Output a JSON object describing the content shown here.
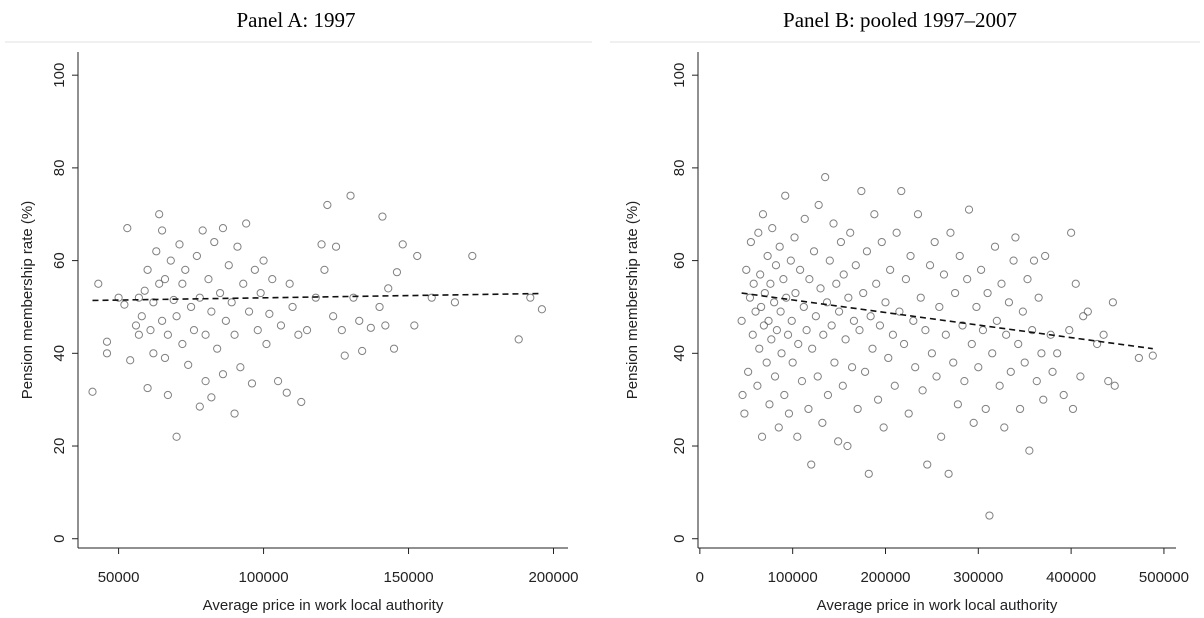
{
  "chart_data": [
    {
      "type": "scatter",
      "title": "Panel A: 1997",
      "xlabel": "Average price in work local authority",
      "ylabel": "Pension membership rate (%)",
      "xlim": [
        36000,
        205000
      ],
      "ylim": [
        -2,
        105
      ],
      "xticks": [
        50000,
        100000,
        150000,
        200000
      ],
      "yticks": [
        0,
        20,
        40,
        60,
        80,
        100
      ],
      "color": "#555555",
      "x": [
        41000,
        43000,
        46000,
        46000,
        50000,
        52000,
        53000,
        54000,
        56000,
        57000,
        57000,
        58000,
        59000,
        60000,
        60000,
        61000,
        62000,
        62000,
        63000,
        64000,
        64000,
        65000,
        65000,
        66000,
        66000,
        67000,
        67000,
        68000,
        69000,
        70000,
        70000,
        71000,
        72000,
        72000,
        73000,
        74000,
        75000,
        76000,
        77000,
        78000,
        78000,
        79000,
        80000,
        80000,
        81000,
        82000,
        82000,
        83000,
        84000,
        85000,
        86000,
        86000,
        87000,
        88000,
        89000,
        90000,
        90000,
        91000,
        92000,
        93000,
        94000,
        95000,
        96000,
        97000,
        98000,
        99000,
        100000,
        101000,
        102000,
        103000,
        105000,
        106000,
        108000,
        109000,
        110000,
        112000,
        113000,
        115000,
        118000,
        120000,
        121000,
        122000,
        124000,
        125000,
        127000,
        128000,
        130000,
        131000,
        133000,
        134000,
        137000,
        140000,
        141000,
        142000,
        143000,
        145000,
        146000,
        148000,
        152000,
        153000,
        158000,
        166000,
        172000,
        188000,
        192000,
        196000
      ],
      "y": [
        31.7,
        55,
        40,
        42.5,
        52,
        50.5,
        67,
        38.5,
        46,
        44,
        52,
        48,
        53.5,
        32.5,
        58,
        45,
        51,
        40,
        62,
        55,
        70,
        66.5,
        47,
        39,
        56,
        31,
        44,
        60,
        51.5,
        22,
        48,
        63.5,
        42,
        55,
        58,
        37.5,
        50,
        45,
        61,
        28.5,
        52,
        66.5,
        44,
        34,
        56,
        49,
        30.5,
        64,
        41,
        53,
        67,
        35.5,
        47,
        59,
        51,
        27,
        44,
        63,
        37,
        55,
        68,
        49,
        33.5,
        58,
        45,
        53,
        60,
        42,
        48.5,
        56,
        34,
        46,
        31.5,
        55,
        50,
        44,
        29.5,
        45,
        52,
        63.5,
        58,
        72,
        48,
        63,
        45,
        39.5,
        74,
        52,
        47,
        40.5,
        45.5,
        50,
        69.5,
        46,
        54,
        41,
        57.5,
        63.5,
        46,
        61,
        52,
        51,
        61,
        43,
        52,
        49.5
      ],
      "fit": {
        "x": [
          41000,
          196000
        ],
        "y": [
          51.4,
          52.9
        ]
      }
    },
    {
      "type": "scatter",
      "title": "Panel B: pooled 1997–2007",
      "xlabel": "Average price in work local authority",
      "ylabel": "Pension membership rate (%)",
      "xlim": [
        -2000,
        513000
      ],
      "ylim": [
        -2,
        105
      ],
      "xticks": [
        0,
        100000,
        200000,
        300000,
        400000,
        500000
      ],
      "yticks": [
        0,
        20,
        40,
        60,
        80,
        100
      ],
      "color": "#555555",
      "x": [
        45000,
        46000,
        48000,
        50000,
        52000,
        54000,
        55000,
        57000,
        58000,
        60000,
        62000,
        63000,
        64000,
        65000,
        66000,
        67000,
        68000,
        69000,
        70000,
        72000,
        73000,
        74000,
        75000,
        76000,
        77000,
        78000,
        80000,
        81000,
        82000,
        83000,
        85000,
        86000,
        87000,
        88000,
        90000,
        91000,
        92000,
        93000,
        95000,
        96000,
        98000,
        99000,
        100000,
        102000,
        103000,
        105000,
        106000,
        108000,
        110000,
        112000,
        113000,
        115000,
        117000,
        118000,
        120000,
        121000,
        123000,
        125000,
        127000,
        128000,
        130000,
        132000,
        133000,
        135000,
        137000,
        138000,
        140000,
        142000,
        144000,
        145000,
        147000,
        149000,
        150000,
        152000,
        154000,
        155000,
        157000,
        159000,
        160000,
        162000,
        164000,
        166000,
        168000,
        170000,
        172000,
        174000,
        176000,
        178000,
        180000,
        182000,
        184000,
        186000,
        188000,
        190000,
        192000,
        194000,
        196000,
        198000,
        200000,
        203000,
        205000,
        208000,
        210000,
        212000,
        215000,
        217000,
        220000,
        222000,
        225000,
        227000,
        230000,
        232000,
        235000,
        238000,
        240000,
        243000,
        245000,
        248000,
        250000,
        253000,
        255000,
        258000,
        260000,
        263000,
        265000,
        268000,
        270000,
        273000,
        275000,
        278000,
        280000,
        283000,
        285000,
        288000,
        290000,
        293000,
        295000,
        298000,
        300000,
        303000,
        305000,
        308000,
        310000,
        312000,
        315000,
        318000,
        320000,
        323000,
        325000,
        328000,
        330000,
        333000,
        335000,
        338000,
        340000,
        343000,
        345000,
        348000,
        350000,
        353000,
        355000,
        358000,
        360000,
        363000,
        365000,
        368000,
        370000,
        372000,
        378000,
        380000,
        385000,
        392000,
        398000,
        400000,
        402000,
        405000,
        410000,
        413000,
        418000,
        428000,
        435000,
        440000,
        445000,
        447000,
        473000,
        488000
      ],
      "y": [
        47,
        31,
        27,
        58,
        36,
        52,
        64,
        44,
        55,
        49,
        33,
        66,
        41,
        57,
        50,
        22,
        70,
        46,
        53,
        38,
        61,
        47,
        29,
        55,
        43,
        67,
        51,
        35,
        59,
        45,
        24,
        63,
        49,
        40,
        56,
        31,
        74,
        52,
        44,
        27,
        60,
        47,
        38,
        65,
        53,
        22,
        42,
        58,
        34,
        50,
        69,
        45,
        28,
        56,
        16,
        41,
        62,
        48,
        35,
        72,
        54,
        25,
        44,
        78,
        51,
        31,
        60,
        46,
        68,
        38,
        55,
        21,
        49,
        64,
        33,
        57,
        43,
        20,
        52,
        66,
        37,
        47,
        59,
        28,
        45,
        75,
        53,
        36,
        62,
        14,
        48,
        41,
        70,
        55,
        30,
        46,
        64,
        24,
        51,
        39,
        58,
        44,
        33,
        66,
        49,
        75,
        42,
        56,
        27,
        61,
        47,
        37,
        70,
        52,
        32,
        45,
        16,
        59,
        40,
        64,
        35,
        50,
        22,
        57,
        44,
        14,
        66,
        38,
        53,
        29,
        61,
        46,
        34,
        56,
        71,
        42,
        25,
        50,
        37,
        58,
        45,
        28,
        53,
        5,
        40,
        63,
        47,
        33,
        55,
        24,
        44,
        51,
        36,
        60,
        65,
        42,
        28,
        49,
        38,
        56,
        19,
        45,
        60,
        34,
        52,
        40,
        30,
        61,
        44,
        36,
        40,
        31,
        45,
        66,
        28,
        55,
        35,
        48,
        49,
        42,
        44,
        34,
        51,
        33,
        39,
        39.5
      ],
      "fit": {
        "x": [
          45000,
          488000
        ],
        "y": [
          53,
          41
        ]
      }
    }
  ]
}
